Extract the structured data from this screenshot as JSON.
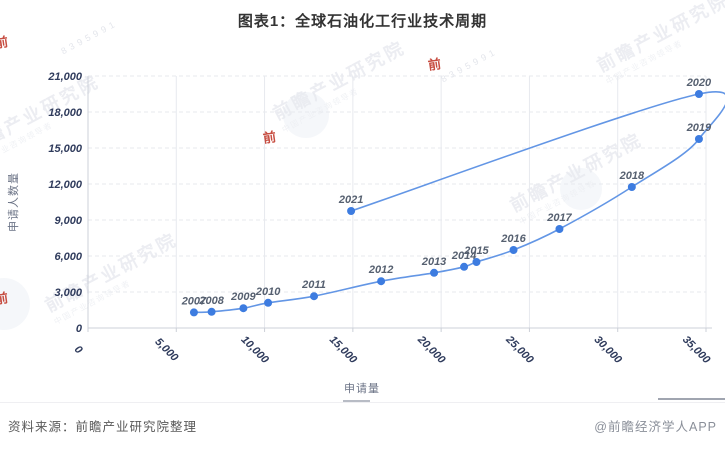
{
  "title": "图表1：全球石油化工行业技术周期",
  "footer": {
    "source": "资料来源：前瞻产业研究院整理",
    "brand": "@前瞻经济学人APP"
  },
  "watermark": {
    "name": "前瞻产业研究院",
    "tagline": "中国产业咨询领导者",
    "digits": "8395991",
    "seal_glyph": "前"
  },
  "colors": {
    "title": "#333333",
    "line": "#6396e5",
    "point": "#3d7ce0",
    "tick_label": "#2f3b5c",
    "year_label": "#566070",
    "axis_name": "#6b7386",
    "axis_line": "#ccd0d8",
    "grid_line": "#e7e9ee",
    "source_text": "#595959",
    "brand_text": "#8a8f99",
    "watermark_accent": "#c23b2e"
  },
  "chart_data": {
    "type": "line",
    "title": "图表1：全球石油化工行业技术周期",
    "xlabel": "申请量",
    "ylabel": "申请人数量",
    "xlim": [
      0,
      35000
    ],
    "ylim": [
      0,
      21000
    ],
    "x_ticks": [
      0,
      5000,
      10000,
      15000,
      20000,
      25000,
      30000,
      35000
    ],
    "y_ticks": [
      0,
      3000,
      6000,
      9000,
      12000,
      15000,
      18000,
      21000
    ],
    "grid": true,
    "legend_position": "none",
    "line_smooth": true,
    "series": [
      {
        "name": "全球石油化工行业技术周期",
        "points": [
          {
            "year": "2007",
            "applications": 6000,
            "applicants": 1300
          },
          {
            "year": "2008",
            "applications": 7000,
            "applicants": 1350
          },
          {
            "year": "2009",
            "applications": 8800,
            "applicants": 1650
          },
          {
            "year": "2010",
            "applications": 10200,
            "applicants": 2100
          },
          {
            "year": "2011",
            "applications": 12800,
            "applicants": 2650
          },
          {
            "year": "2012",
            "applications": 16600,
            "applicants": 3900
          },
          {
            "year": "2013",
            "applications": 19600,
            "applicants": 4600
          },
          {
            "year": "2014",
            "applications": 21300,
            "applicants": 5100
          },
          {
            "year": "2015",
            "applications": 22000,
            "applicants": 5500
          },
          {
            "year": "2016",
            "applications": 24100,
            "applicants": 6500
          },
          {
            "year": "2017",
            "applications": 26700,
            "applicants": 8250
          },
          {
            "year": "2018",
            "applications": 30800,
            "applicants": 11750
          },
          {
            "year": "2019",
            "applications": 34600,
            "applicants": 15750
          },
          {
            "year": "2020",
            "applications": 34600,
            "applicants": 19500
          },
          {
            "year": "2021",
            "applications": 14900,
            "applicants": 9750
          }
        ]
      }
    ]
  }
}
